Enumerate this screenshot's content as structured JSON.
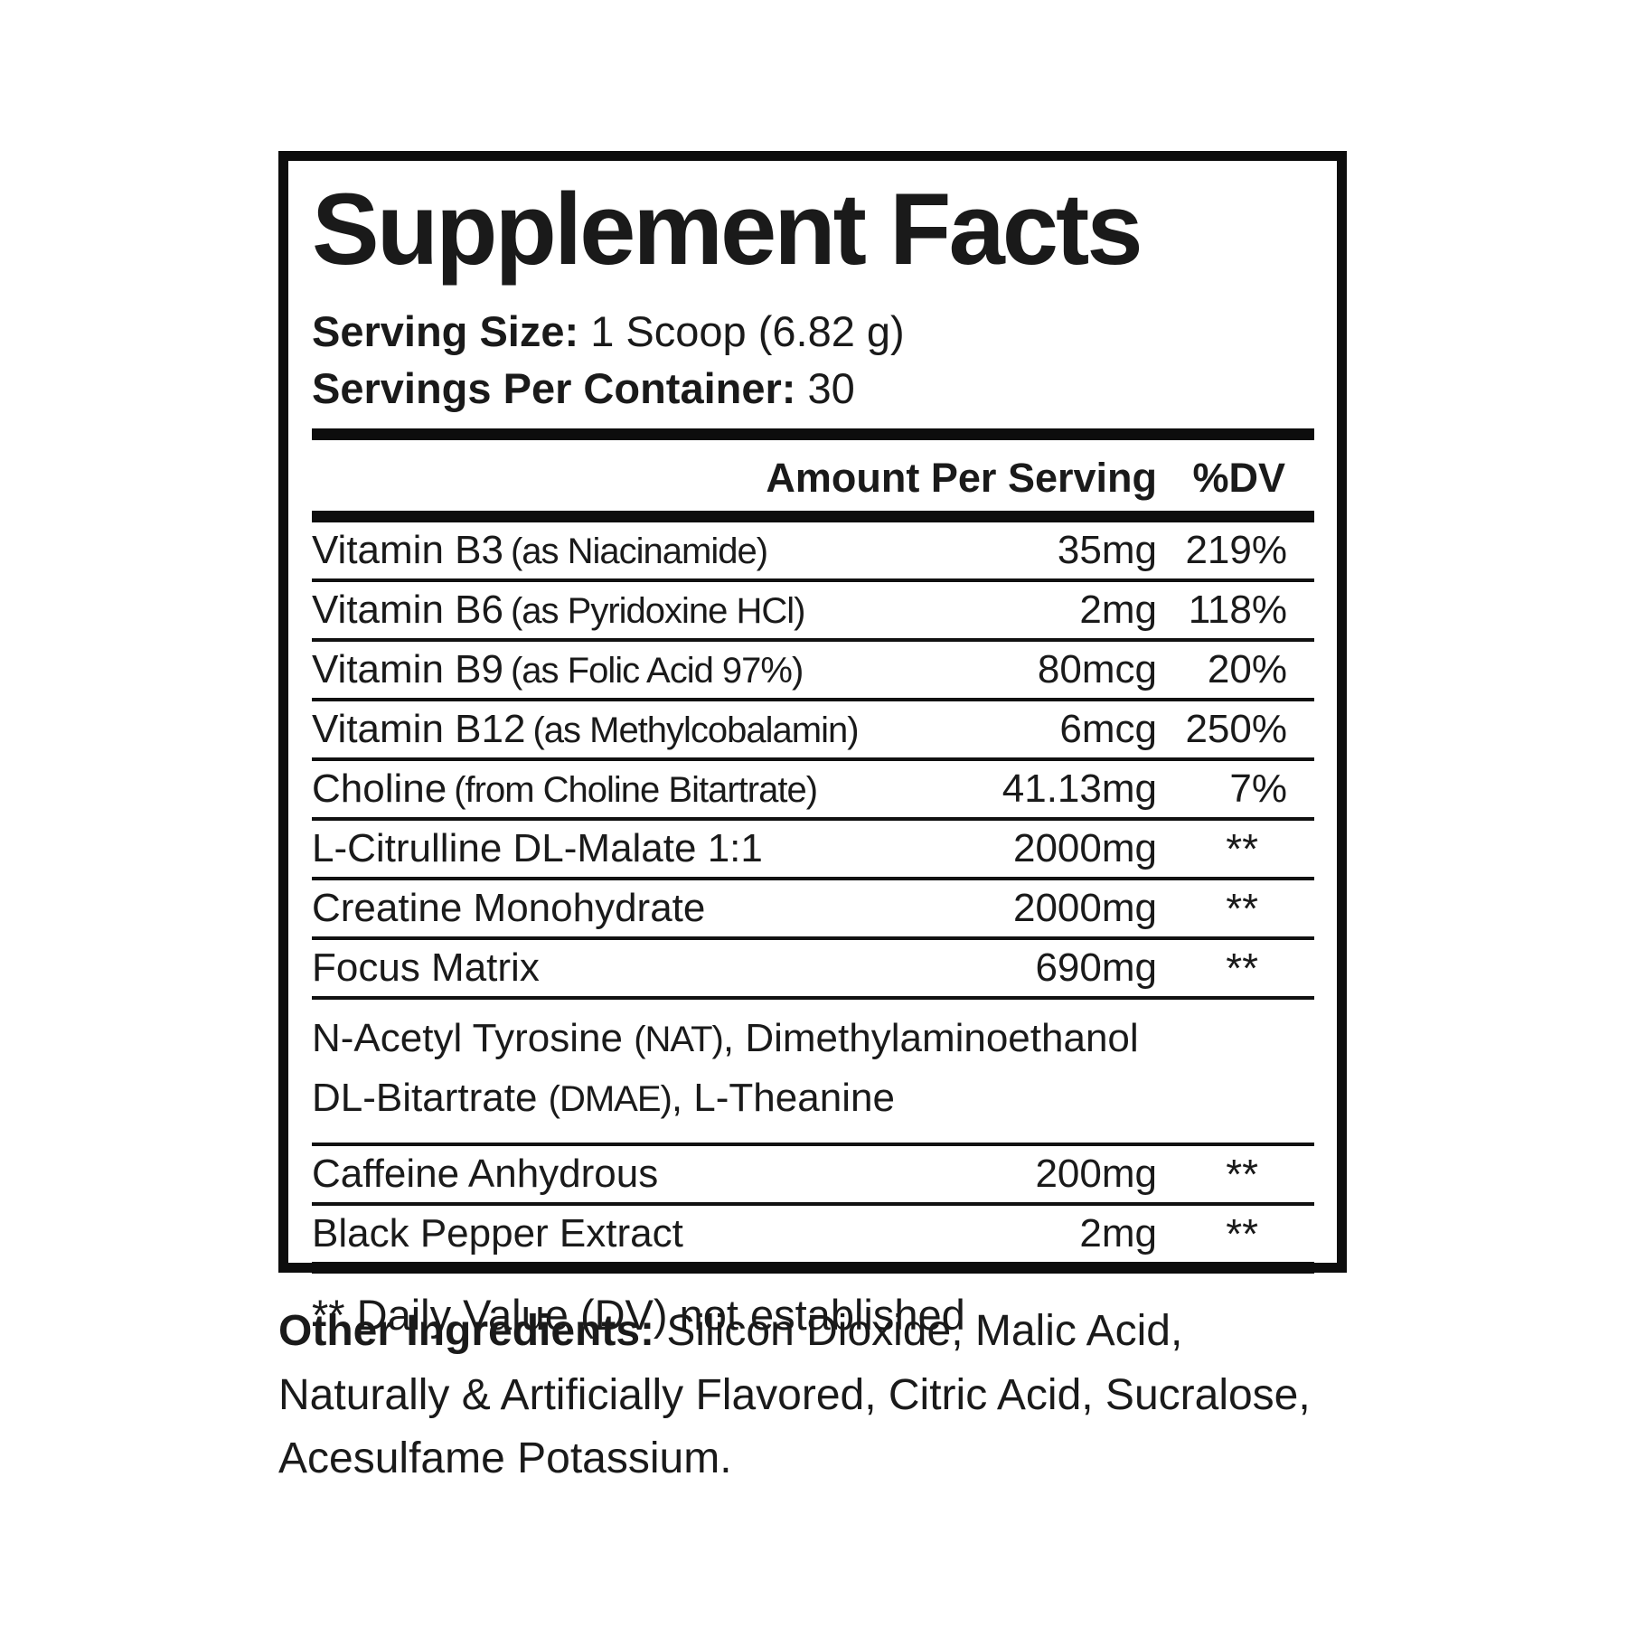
{
  "colors": {
    "background": "#ffffff",
    "text": "#1a1a1a",
    "rule": "#0d0d0d"
  },
  "label": {
    "title": "Supplement Facts",
    "serving_size_label": "Serving Size:",
    "serving_size_value": " 1 Scoop (6.82 g)",
    "servings_per_container_label": "Servings Per Container:",
    "servings_per_container_value": " 30",
    "footnote": "** Daily Value (DV) not established"
  },
  "table": {
    "header": {
      "amount": "Amount Per Serving",
      "dv": "%DV"
    },
    "rows": [
      {
        "name": "Vitamin B3",
        "note": "(as Niacinamide)",
        "amount": "35mg",
        "dv": "219%"
      },
      {
        "name": "Vitamin B6",
        "note": "(as Pyridoxine HCl)",
        "amount": "2mg",
        "dv": "118%"
      },
      {
        "name": "Vitamin B9",
        "note": "(as Folic Acid 97%)",
        "amount": "80mcg",
        "dv": "20%"
      },
      {
        "name": "Vitamin B12",
        "note": "(as Methylcobalamin)",
        "amount": "6mcg",
        "dv": "250%"
      },
      {
        "name": "Choline",
        "note": "(from Choline Bitartrate)",
        "amount": "41.13mg",
        "dv": "7%"
      },
      {
        "name": "L-Citrulline DL-Malate 1:1",
        "note": "",
        "amount": "2000mg",
        "dv": "**"
      },
      {
        "name": "Creatine Monohydrate",
        "note": "",
        "amount": "2000mg",
        "dv": "**"
      },
      {
        "name": "Focus Matrix",
        "note": "",
        "amount": "690mg",
        "dv": "**"
      },
      {
        "name": "Caffeine Anhydrous",
        "note": "",
        "amount": "200mg",
        "dv": "**"
      },
      {
        "name": "Black Pepper Extract",
        "note": "",
        "amount": "2mg",
        "dv": "**"
      }
    ],
    "blend": {
      "line1_pre": "N-Acetyl Tyrosine ",
      "line1_cond": "(NAT)",
      "line1_post": ", Dimethylaminoethanol",
      "line2_pre": "DL-Bitartrate ",
      "line2_cond": "(DMAE)",
      "line2_post": ", L-Theanine"
    }
  },
  "other_ingredients": {
    "line1_label": "Other Ingredients:",
    "line1_rest": " Silicon Dioxide, Malic Acid,",
    "line2": "Naturally & Artificially Flavored, Citric Acid, Sucralose,",
    "line3": "Acesulfame Potassium."
  }
}
